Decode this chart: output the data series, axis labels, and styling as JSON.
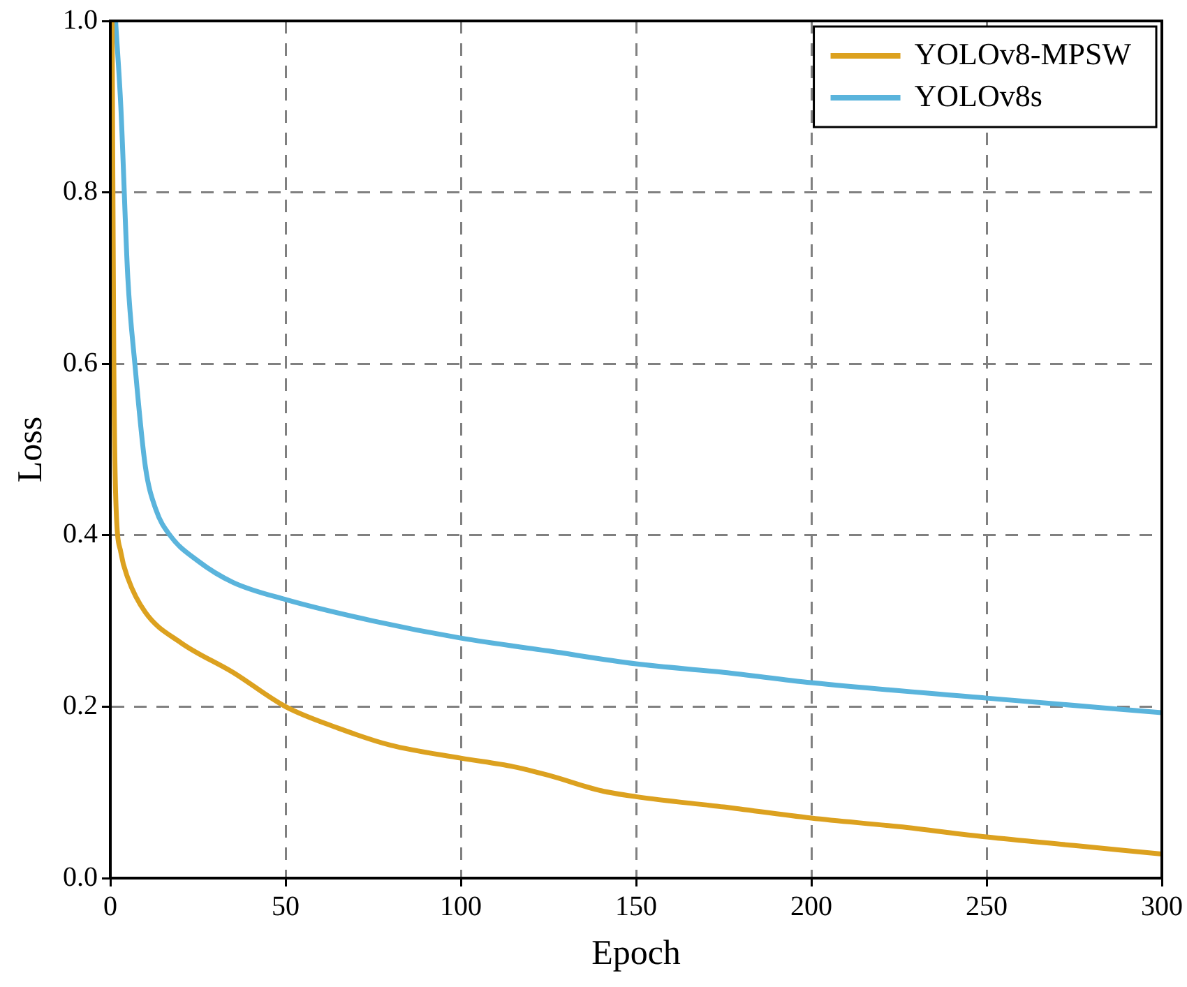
{
  "chart_data": {
    "type": "line",
    "xlabel": "Epoch",
    "ylabel": "Loss",
    "xlim": [
      0,
      300
    ],
    "xticks": [
      0,
      50,
      100,
      150,
      200,
      250,
      300
    ],
    "ylim": [
      0,
      1
    ],
    "yticks": [
      {
        "value": 0,
        "label": "0.0"
      },
      {
        "value": 0.2,
        "label": "0.2"
      },
      {
        "value": 0.4,
        "label": "0.4"
      },
      {
        "value": 0.6,
        "label": "0.6"
      },
      {
        "value": 0.8,
        "label": "0.8"
      },
      {
        "value": 1,
        "label": "1.0"
      }
    ],
    "grid": true,
    "legend": "top right",
    "marker": "none",
    "line_style": "solid",
    "series": [
      {
        "name": "YOLOv8-MPSW",
        "color": "#dca11f",
        "x": [
          0.5,
          1,
          1.5,
          3,
          5,
          10,
          20,
          35,
          50,
          65,
          80,
          100,
          115,
          125,
          140,
          150,
          175,
          200,
          225,
          250,
          275,
          300
        ],
        "values": [
          1.0,
          0.6,
          0.45,
          0.38,
          0.35,
          0.31,
          0.275,
          0.24,
          0.2,
          0.175,
          0.155,
          0.14,
          0.13,
          0.12,
          0.102,
          0.095,
          0.083,
          0.07,
          0.06,
          0.048,
          0.038,
          0.028
        ]
      },
      {
        "name": "YOLOv8s",
        "color": "#5ab4dc",
        "x": [
          1.5,
          3,
          5,
          7,
          10,
          13,
          17,
          25,
          35,
          50,
          75,
          100,
          125,
          150,
          175,
          200,
          250,
          300
        ],
        "values": [
          1.0,
          0.9,
          0.7,
          0.6,
          0.48,
          0.43,
          0.4,
          0.37,
          0.345,
          0.325,
          0.3,
          0.28,
          0.265,
          0.25,
          0.24,
          0.228,
          0.21,
          0.193
        ]
      }
    ]
  }
}
